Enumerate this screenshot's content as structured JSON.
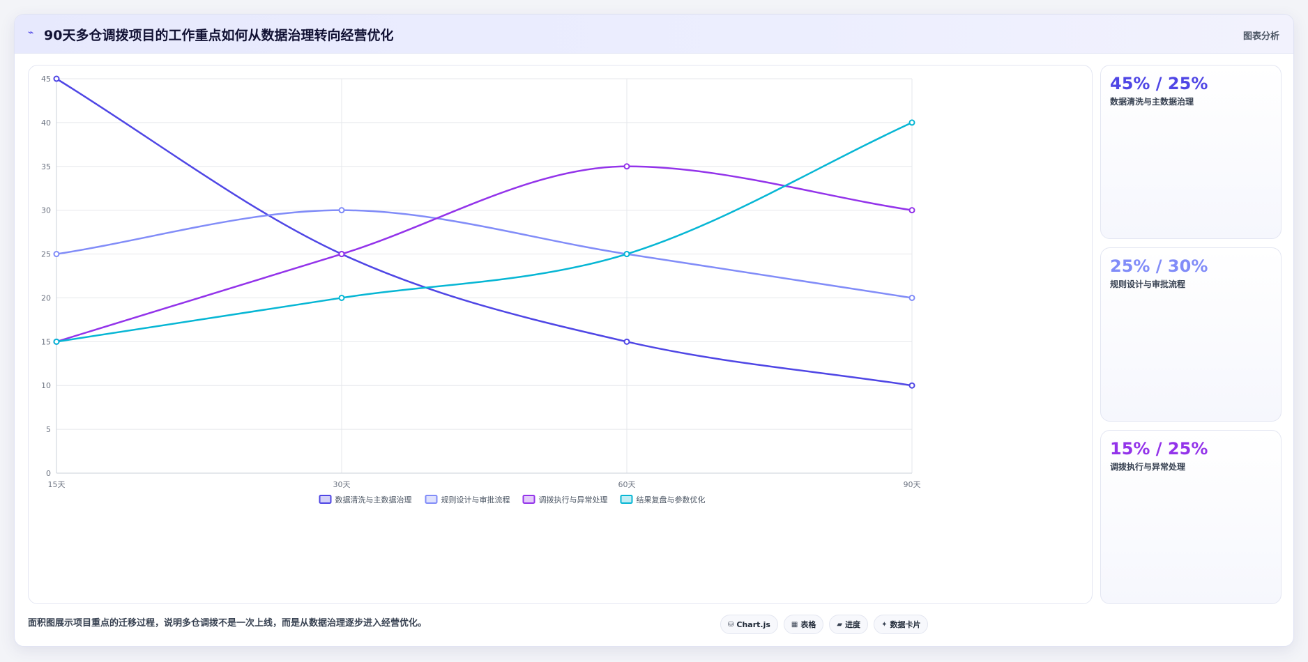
{
  "header": {
    "icon": "chart-line-icon",
    "title": "90天多仓调拨项目的工作重点如何从数据治理转向经营优化",
    "tag": "图表分析"
  },
  "colors": {
    "s1": "#4f46e5",
    "s2": "#818cf8",
    "s3": "#9333ea",
    "s4": "#06b6d4"
  },
  "chart_data": {
    "type": "line",
    "categories": [
      "15天",
      "30天",
      "60天",
      "90天"
    ],
    "series": [
      {
        "name": "数据清洗与主数据治理",
        "values": [
          45,
          25,
          15,
          10
        ],
        "color": "#4f46e5"
      },
      {
        "name": "规则设计与审批流程",
        "values": [
          25,
          30,
          25,
          20
        ],
        "color": "#818cf8"
      },
      {
        "name": "调拨执行与异常处理",
        "values": [
          15,
          25,
          35,
          30
        ],
        "color": "#9333ea"
      },
      {
        "name": "结果复盘与参数优化",
        "values": [
          15,
          20,
          25,
          40
        ],
        "color": "#06b6d4"
      }
    ],
    "yticks": [
      0,
      5,
      10,
      15,
      20,
      25,
      30,
      35,
      40,
      45
    ],
    "ylim": [
      0,
      45
    ],
    "grid": true,
    "smooth": true,
    "legend": "bottom"
  },
  "stats": [
    {
      "value": "45% / 25%",
      "label": "数据清洗与主数据治理",
      "color": "#4f46e5"
    },
    {
      "value": "25% / 30%",
      "label": "规则设计与审批流程",
      "color": "#818cf8"
    },
    {
      "value": "15% / 25%",
      "label": "调拨执行与异常处理",
      "color": "#9333ea"
    }
  ],
  "footer": {
    "note": "面积图展示项目重点的迁移过程，说明多仓调拨不是一次上线，而是从数据治理逐步进入经营优化。",
    "chips": [
      {
        "icon": "code-icon",
        "glyph": "⛁",
        "label": "Chart.js"
      },
      {
        "icon": "table-icon",
        "glyph": "▦",
        "label": "表格"
      },
      {
        "icon": "folder-icon",
        "glyph": "▰",
        "label": "进度"
      },
      {
        "icon": "sparkle-icon",
        "glyph": "✦",
        "label": "数据卡片"
      }
    ]
  }
}
